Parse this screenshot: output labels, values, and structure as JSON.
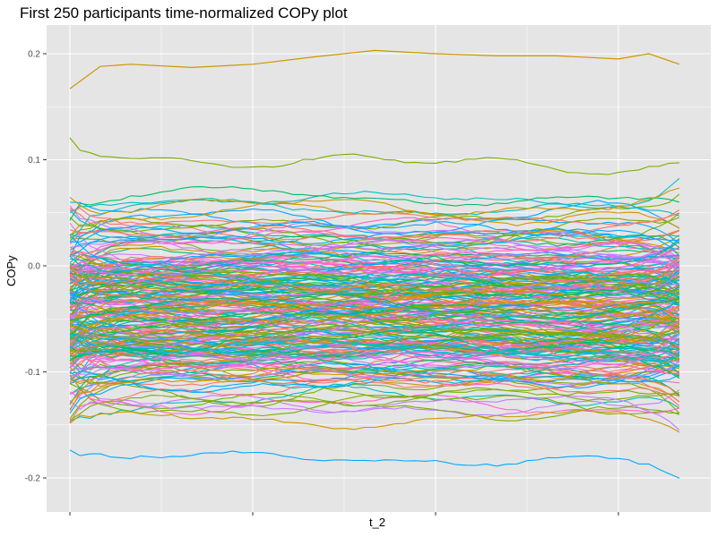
{
  "chart_data": {
    "type": "line",
    "title": "First 250 participants time-normalized COPy plot",
    "xlabel": "t_2",
    "ylabel": "COPy",
    "ylim": [
      -0.23,
      0.23
    ],
    "xlim": [
      0,
      1
    ],
    "y_ticks": [
      -0.2,
      -0.1,
      0.0,
      0.1,
      0.2
    ],
    "y_tick_labels": [
      "-0.2",
      "-0.1",
      "0.0",
      "0.1",
      "0.2"
    ],
    "x_ticks": [
      0.0,
      0.3,
      0.6,
      0.9
    ],
    "x_tick_labels": [
      "",
      "",
      "",
      ""
    ],
    "grid": true,
    "legend": "none",
    "panel_background": "#e5e5e5",
    "grid_color": "#ffffff",
    "n_series": 250,
    "series_note": "250 colored time series, one per participant",
    "highlighted_series": [
      {
        "color": "#cd9600",
        "x": [
          0.0,
          0.05,
          0.1,
          0.2,
          0.3,
          0.4,
          0.5,
          0.6,
          0.7,
          0.8,
          0.9,
          0.95,
          1.0
        ],
        "values": [
          0.167,
          0.188,
          0.19,
          0.187,
          0.19,
          0.197,
          0.203,
          0.2,
          0.198,
          0.198,
          0.195,
          0.2,
          0.19
        ]
      }
    ],
    "color_palette": [
      "#f8766d",
      "#cd9600",
      "#7cae00",
      "#00be67",
      "#00bfc4",
      "#00a9ff",
      "#c77cff",
      "#ff61cc"
    ]
  }
}
